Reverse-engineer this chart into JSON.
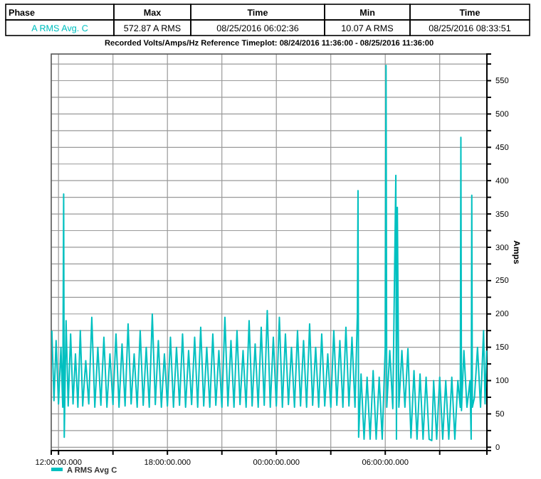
{
  "chart_data": {
    "type": "line",
    "title": "Recorded Volts/Amps/Hz Reference Timeplot: 08/24/2016 11:36:00 - 08/25/2016 11:36:00",
    "ylabel": "Amps",
    "annotations": [
      "Phase",
      "Max",
      "Time",
      "Min",
      "Time",
      "A RMS Avg. C",
      "572.87 A RMS",
      "08/25/2016 06:02:36",
      "10.07 A RMS",
      "08/25/2016 08:33:51"
    ],
    "xlim": [
      "2016-08-24T11:36",
      "2016-08-25T11:36"
    ],
    "xticks": [
      {
        "value": "2016-08-24T12:00",
        "label": "12:00:00.000"
      },
      {
        "value": "2016-08-24T15:00",
        "label": null
      },
      {
        "value": "2016-08-24T18:00",
        "label": "18:00:00.000"
      },
      {
        "value": "2016-08-24T21:00",
        "label": null
      },
      {
        "value": "2016-08-25T00:00",
        "label": "00:00:00.000"
      },
      {
        "value": "2016-08-25T03:00",
        "label": null
      },
      {
        "value": "2016-08-25T06:00",
        "label": "06:00:00.000"
      },
      {
        "value": "2016-08-25T09:00",
        "label": null
      }
    ],
    "ylim": [
      -5,
      590
    ],
    "yticks": [
      0,
      {
        "value": 25,
        "label": null
      },
      50,
      {
        "value": 75,
        "label": null
      },
      100,
      {
        "value": 125,
        "label": null
      },
      150,
      {
        "value": 175,
        "label": null
      },
      200,
      {
        "value": 225,
        "label": null
      },
      250,
      {
        "value": 275,
        "label": null
      },
      300,
      {
        "value": 325,
        "label": null
      },
      350,
      {
        "value": 375,
        "label": null
      },
      400,
      {
        "value": 425,
        "label": null
      },
      450,
      {
        "value": 475,
        "label": null
      },
      500,
      {
        "value": 525,
        "label": null
      },
      550,
      {
        "value": 575,
        "label": null
      }
    ],
    "grid": true,
    "legend": "bottom",
    "marker": "none",
    "line_style": "solid",
    "series": [
      {
        "name": "A RMS Avg C",
        "color": "#00c0c0",
        "x": [
          "2016-08-24T11:38",
          "2016-08-24T11:45",
          "2016-08-24T11:52",
          "2016-08-24T12:00",
          "2016-08-24T12:08",
          "2016-08-24T12:14",
          "2016-08-24T12:17",
          "2016-08-24T12:19",
          "2016-08-24T12:25",
          "2016-08-24T12:32",
          "2016-08-24T12:40",
          "2016-08-24T12:48",
          "2016-08-24T12:56",
          "2016-08-24T13:04",
          "2016-08-24T13:12",
          "2016-08-24T13:20",
          "2016-08-24T13:30",
          "2016-08-24T13:40",
          "2016-08-24T13:50",
          "2016-08-24T14:00",
          "2016-08-24T14:10",
          "2016-08-24T14:20",
          "2016-08-24T14:30",
          "2016-08-24T14:40",
          "2016-08-24T14:50",
          "2016-08-24T15:00",
          "2016-08-24T15:10",
          "2016-08-24T15:20",
          "2016-08-24T15:30",
          "2016-08-24T15:40",
          "2016-08-24T15:50",
          "2016-08-24T16:00",
          "2016-08-24T16:10",
          "2016-08-24T16:20",
          "2016-08-24T16:30",
          "2016-08-24T16:40",
          "2016-08-24T16:50",
          "2016-08-24T17:00",
          "2016-08-24T17:10",
          "2016-08-24T17:20",
          "2016-08-24T17:30",
          "2016-08-24T17:40",
          "2016-08-24T17:50",
          "2016-08-24T18:00",
          "2016-08-24T18:10",
          "2016-08-24T18:20",
          "2016-08-24T18:30",
          "2016-08-24T18:40",
          "2016-08-24T18:50",
          "2016-08-24T19:00",
          "2016-08-24T19:10",
          "2016-08-24T19:20",
          "2016-08-24T19:30",
          "2016-08-24T19:40",
          "2016-08-24T19:50",
          "2016-08-24T20:00",
          "2016-08-24T20:10",
          "2016-08-24T20:20",
          "2016-08-24T20:30",
          "2016-08-24T20:40",
          "2016-08-24T20:50",
          "2016-08-24T21:00",
          "2016-08-24T21:10",
          "2016-08-24T21:20",
          "2016-08-24T21:30",
          "2016-08-24T21:40",
          "2016-08-24T21:50",
          "2016-08-24T22:00",
          "2016-08-24T22:10",
          "2016-08-24T22:20",
          "2016-08-24T22:30",
          "2016-08-24T22:40",
          "2016-08-24T22:50",
          "2016-08-24T23:00",
          "2016-08-24T23:10",
          "2016-08-24T23:20",
          "2016-08-24T23:30",
          "2016-08-24T23:40",
          "2016-08-24T23:50",
          "2016-08-25T00:00",
          "2016-08-25T00:10",
          "2016-08-25T00:20",
          "2016-08-25T00:30",
          "2016-08-25T00:40",
          "2016-08-25T00:50",
          "2016-08-25T01:00",
          "2016-08-25T01:10",
          "2016-08-25T01:20",
          "2016-08-25T01:30",
          "2016-08-25T01:40",
          "2016-08-25T01:50",
          "2016-08-25T02:00",
          "2016-08-25T02:10",
          "2016-08-25T02:20",
          "2016-08-25T02:30",
          "2016-08-25T02:40",
          "2016-08-25T02:50",
          "2016-08-25T03:00",
          "2016-08-25T03:10",
          "2016-08-25T03:20",
          "2016-08-25T03:30",
          "2016-08-25T03:40",
          "2016-08-25T03:50",
          "2016-08-25T04:00",
          "2016-08-25T04:10",
          "2016-08-25T04:20",
          "2016-08-25T04:28",
          "2016-08-25T04:30",
          "2016-08-25T04:32",
          "2016-08-25T04:40",
          "2016-08-25T04:50",
          "2016-08-25T05:00",
          "2016-08-25T05:10",
          "2016-08-25T05:20",
          "2016-08-25T05:30",
          "2016-08-25T05:40",
          "2016-08-25T05:50",
          "2016-08-25T06:00",
          "2016-08-25T06:02:36",
          "2016-08-25T06:05",
          "2016-08-25T06:15",
          "2016-08-25T06:25",
          "2016-08-25T06:35",
          "2016-08-25T06:37",
          "2016-08-25T06:40",
          "2016-08-25T06:45",
          "2016-08-25T06:55",
          "2016-08-25T07:05",
          "2016-08-25T07:15",
          "2016-08-25T07:25",
          "2016-08-25T07:35",
          "2016-08-25T07:45",
          "2016-08-25T07:55",
          "2016-08-25T08:05",
          "2016-08-25T08:15",
          "2016-08-25T08:25",
          "2016-08-25T08:33:51",
          "2016-08-25T08:40",
          "2016-08-25T08:50",
          "2016-08-25T09:00",
          "2016-08-25T09:10",
          "2016-08-25T09:20",
          "2016-08-25T09:30",
          "2016-08-25T09:40",
          "2016-08-25T09:50",
          "2016-08-25T10:00",
          "2016-08-25T10:08",
          "2016-08-25T10:10",
          "2016-08-25T10:12",
          "2016-08-25T10:20",
          "2016-08-25T10:30",
          "2016-08-25T10:40",
          "2016-08-25T10:44",
          "2016-08-25T10:46",
          "2016-08-25T10:48",
          "2016-08-25T10:55",
          "2016-08-25T11:05",
          "2016-08-25T11:15",
          "2016-08-25T11:25",
          "2016-08-25T11:30",
          "2016-08-25T11:35"
        ],
        "values": [
          175,
          70,
          160,
          65,
          150,
          60,
          380,
          15,
          190,
          62,
          170,
          65,
          140,
          60,
          175,
          62,
          130,
          65,
          195,
          60,
          150,
          63,
          165,
          60,
          140,
          64,
          170,
          60,
          155,
          62,
          185,
          65,
          140,
          60,
          175,
          63,
          150,
          60,
          200,
          64,
          160,
          60,
          140,
          62,
          165,
          60,
          150,
          63,
          170,
          60,
          145,
          64,
          165,
          60,
          180,
          62,
          150,
          60,
          170,
          63,
          145,
          60,
          195,
          62,
          160,
          60,
          175,
          64,
          145,
          60,
          190,
          62,
          155,
          60,
          180,
          63,
          205,
          60,
          165,
          62,
          195,
          60,
          170,
          64,
          150,
          60,
          175,
          62,
          160,
          60,
          185,
          63,
          150,
          60,
          170,
          62,
          140,
          60,
          175,
          63,
          160,
          60,
          180,
          62,
          165,
          60,
          200,
          385,
          15,
          110,
          12,
          105,
          12,
          115,
          12,
          105,
          12,
          150,
          572.87,
          60,
          145,
          58,
          408,
          12,
          360,
          60,
          145,
          60,
          148,
          14,
          115,
          12,
          110,
          12,
          105,
          12,
          10.07,
          100,
          12,
          105,
          12,
          100,
          12,
          105,
          12,
          100,
          60,
          465,
          55,
          145,
          60,
          100,
          12,
          378,
          60,
          75,
          150,
          60,
          175,
          65,
          145
        ]
      }
    ]
  }
}
